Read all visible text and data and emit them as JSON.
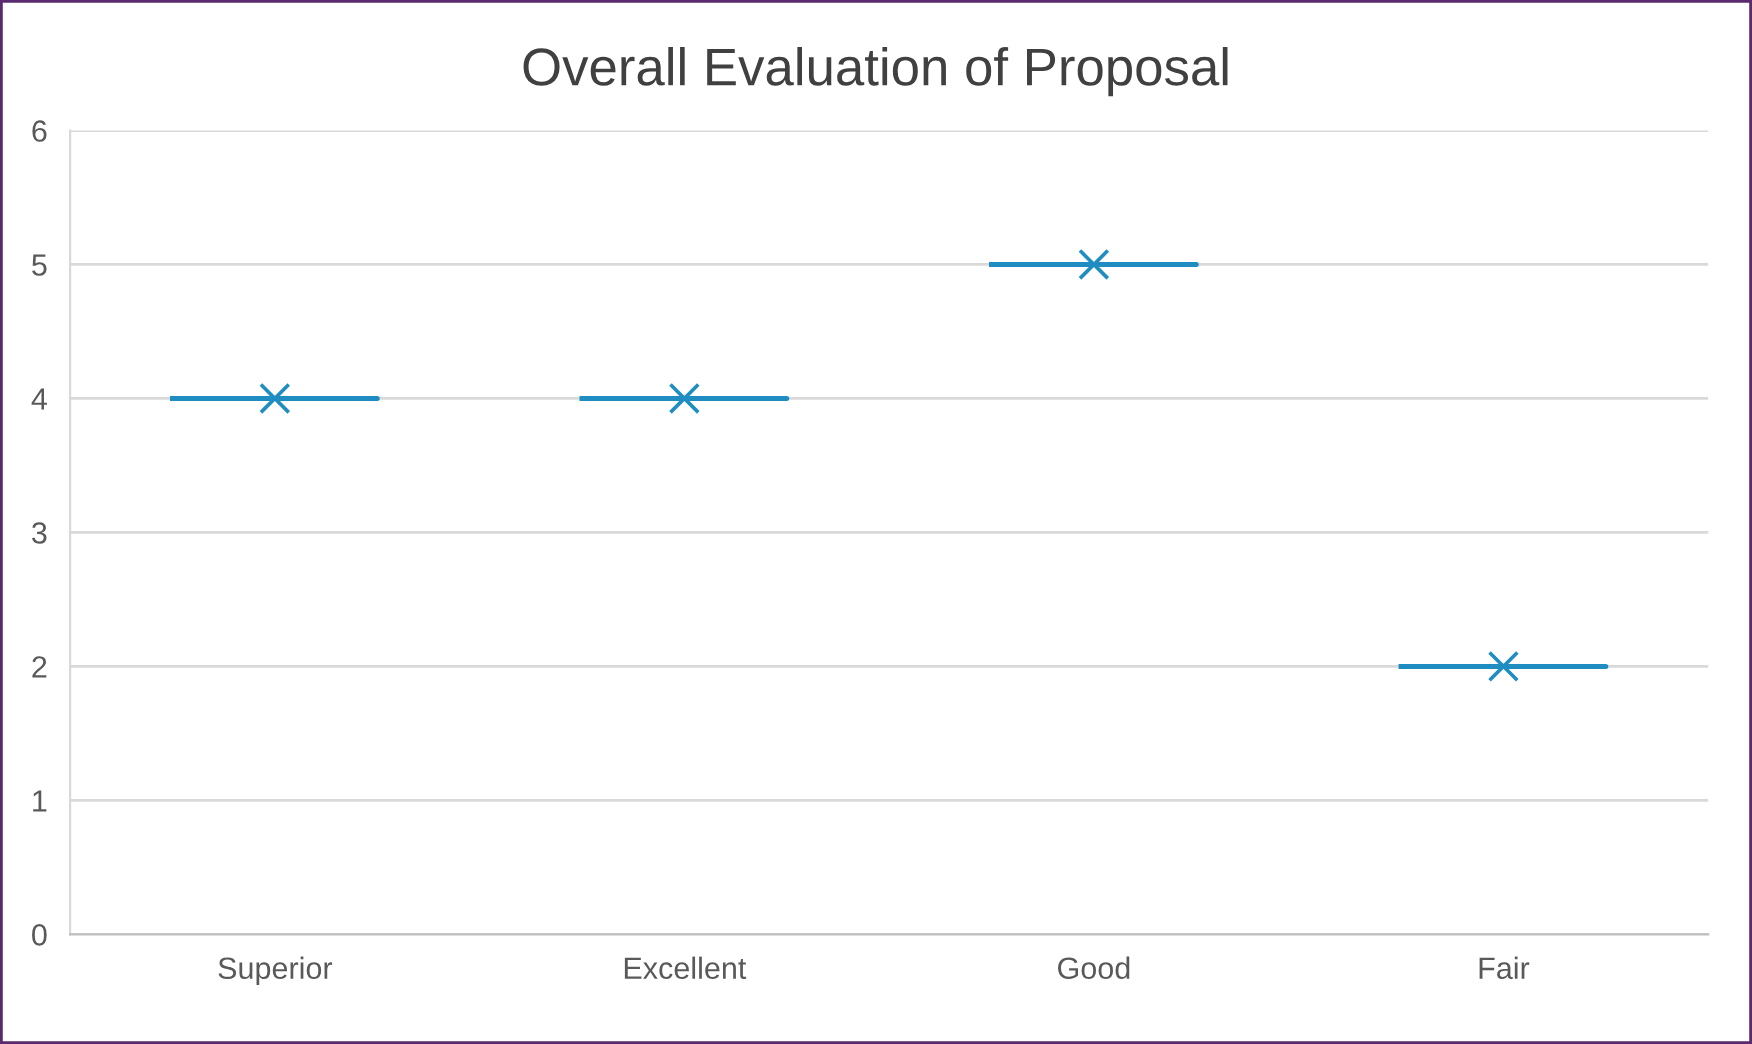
{
  "chart_data": {
    "type": "box",
    "title": "Overall Evaluation of Proposal",
    "categories": [
      "Superior",
      "Excellent",
      "Good",
      "Fair"
    ],
    "boxes": [
      {
        "low": 4,
        "q1": 4,
        "median": 4,
        "q3": 4,
        "high": 4,
        "mean": 4
      },
      {
        "low": 4,
        "q1": 4,
        "median": 4,
        "q3": 4,
        "high": 4,
        "mean": 4
      },
      {
        "low": 5,
        "q1": 5,
        "median": 5,
        "q3": 5,
        "high": 5,
        "mean": 5
      },
      {
        "low": 2,
        "q1": 2,
        "median": 2,
        "q3": 2,
        "high": 2,
        "mean": 2
      }
    ],
    "color": "#1f8dc2",
    "marker": "cross",
    "ylim": [
      0,
      6
    ],
    "yticks": [
      0,
      1,
      2,
      3,
      4,
      5,
      6
    ],
    "grid": "y"
  }
}
